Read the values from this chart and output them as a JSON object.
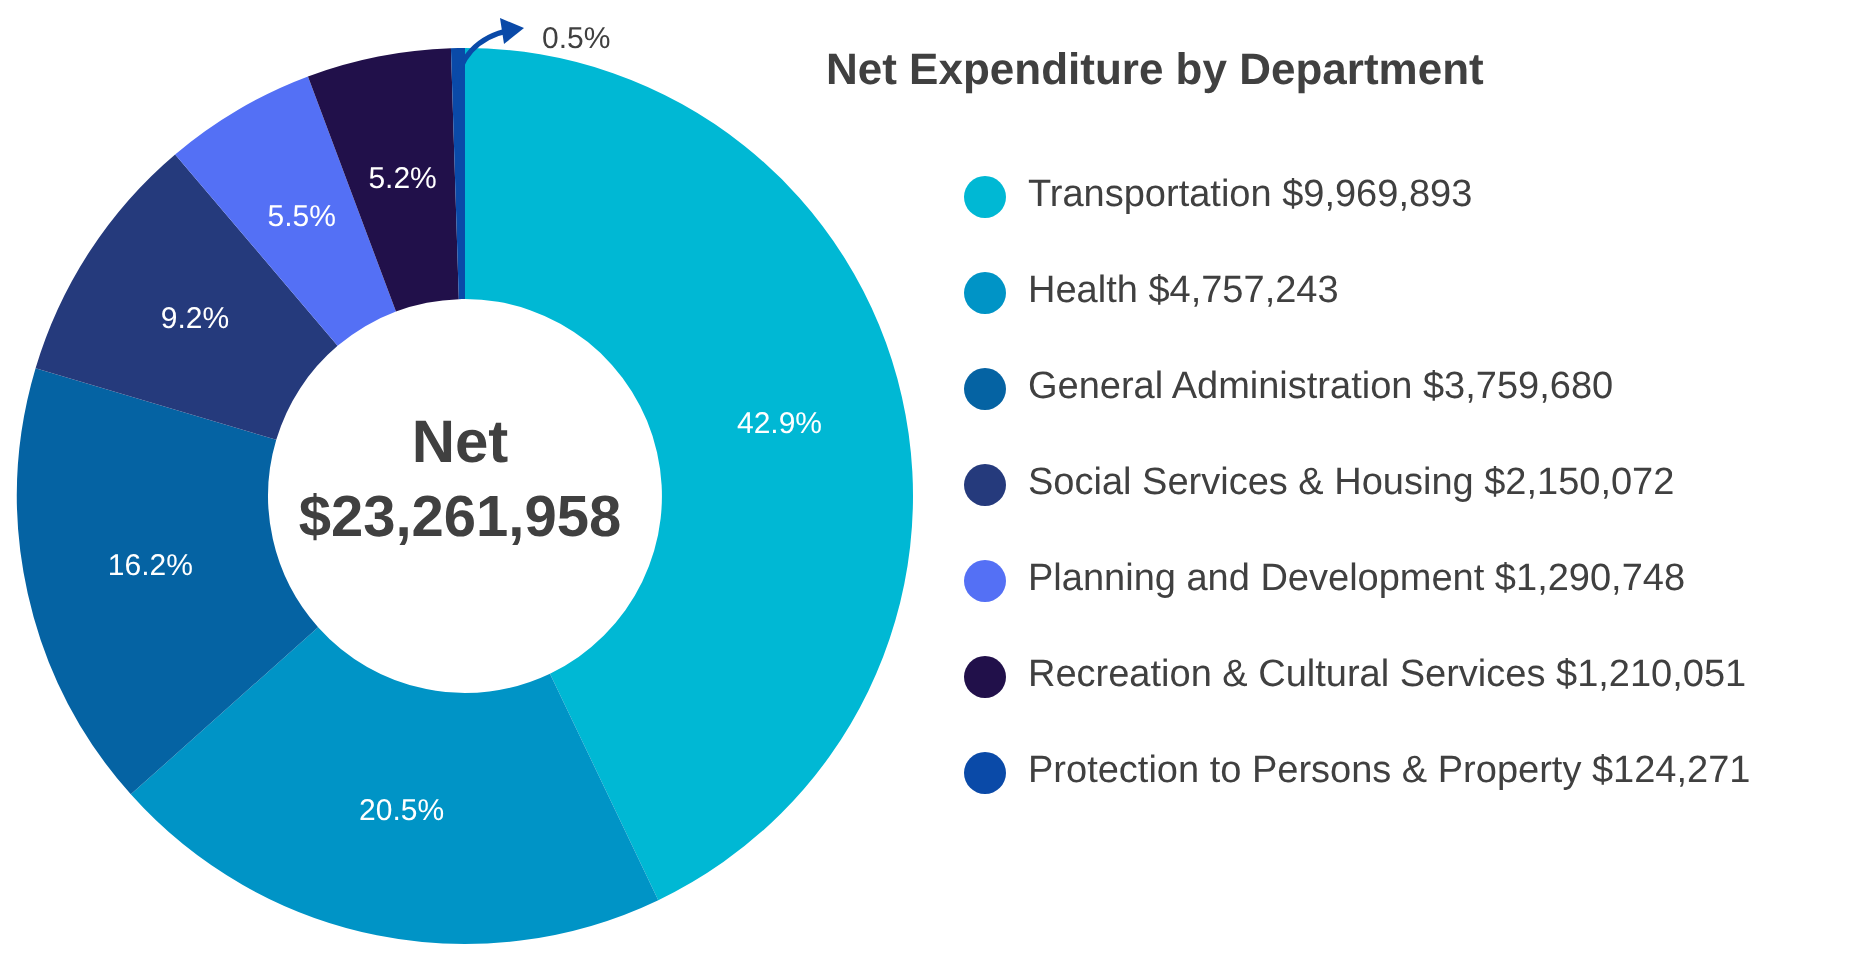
{
  "chart_data": {
    "type": "donut",
    "title": "Net Expenditure by Department",
    "categories": [
      "Transportation $9,969,893",
      "Health $4,757,243",
      "General Administration $3,759,680",
      "Social Services & Housing $2,150,072",
      "Planning and Development $1,290,748",
      "Recreation & Cultural Services $1,210,051",
      "Protection to Persons & Property $124,271"
    ],
    "values": [
      42.9,
      20.5,
      16.2,
      9.2,
      5.5,
      5.2,
      0.5
    ],
    "value_labels": [
      "42.9%",
      "20.5%",
      "16.2%",
      "9.2%",
      "5.5%",
      "5.2%",
      "0.5%"
    ],
    "colors": [
      "#00b8d4",
      "#0094c6",
      "#0563a3",
      "#253a7c",
      "#5470f5",
      "#21104a",
      "#0a4aa8"
    ],
    "annotations": [
      "Net",
      "$23,261,958"
    ],
    "legend": "right"
  }
}
